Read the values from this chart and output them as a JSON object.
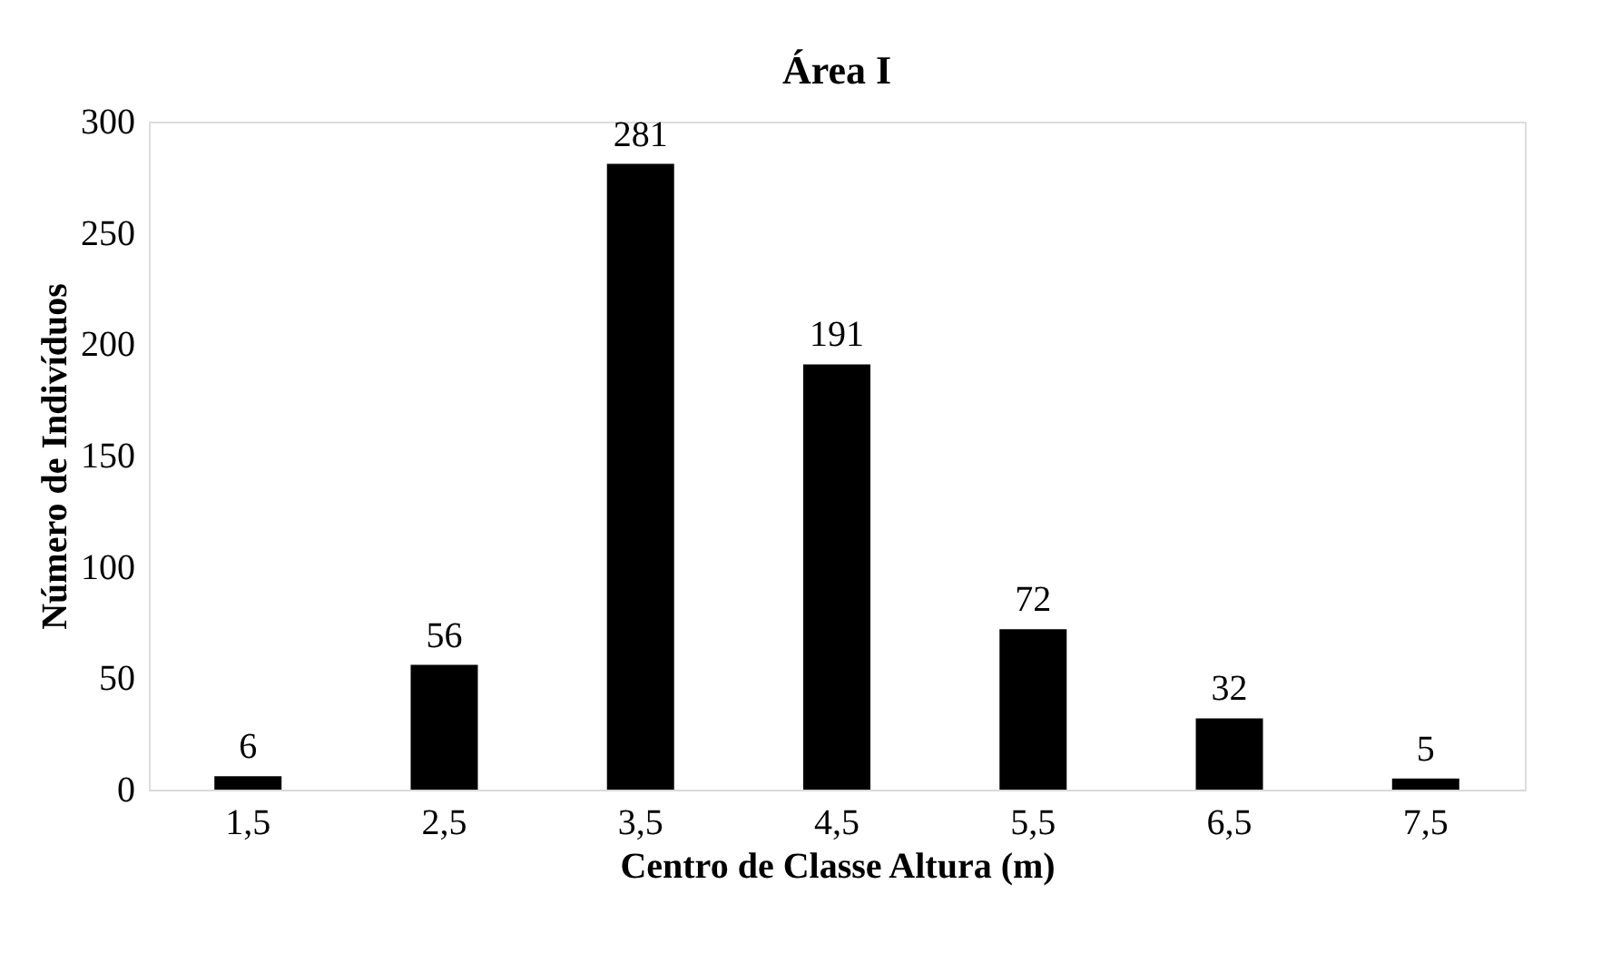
{
  "chart_data": {
    "type": "bar",
    "title": "Área I",
    "xlabel": "Centro de Classe Altura (m)",
    "ylabel": "Número de Indivíduos",
    "categories": [
      "1,5",
      "2,5",
      "3,5",
      "4,5",
      "5,5",
      "6,5",
      "7,5"
    ],
    "values": [
      6,
      56,
      281,
      191,
      72,
      32,
      5
    ],
    "color": "#000000",
    "ylim": [
      0,
      300
    ],
    "yticks": [
      0,
      50,
      100,
      150,
      200,
      250,
      300
    ],
    "data_labels": true,
    "grid": false
  }
}
